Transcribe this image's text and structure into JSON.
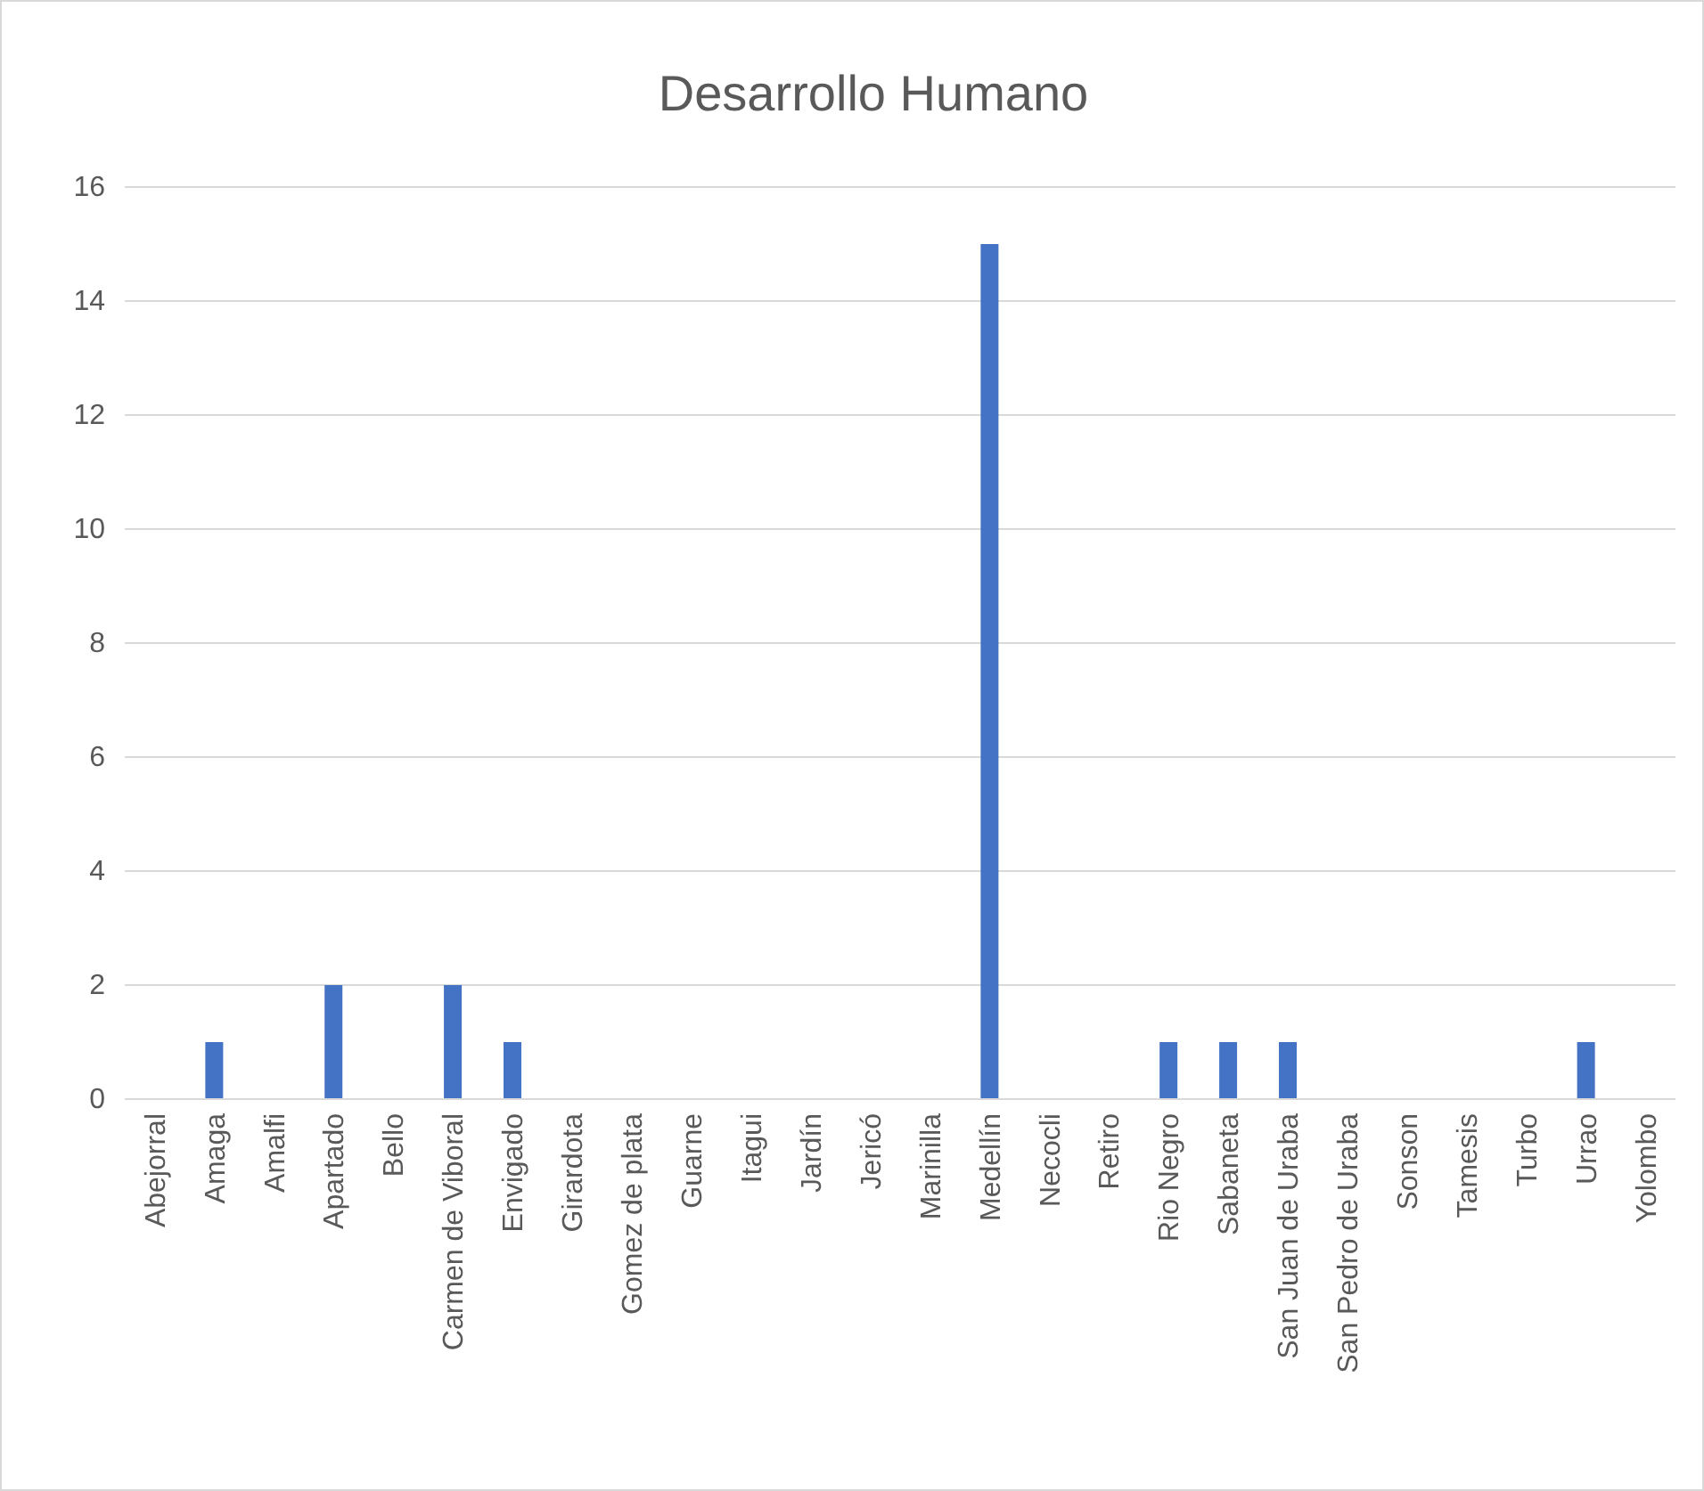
{
  "chart_data": {
    "type": "bar",
    "title": "Desarrollo Humano",
    "categories": [
      "Abejorral",
      "Amaga",
      "Amalfi",
      "Apartado",
      "Bello",
      "Carmen de Viboral",
      "Envigado",
      "Girardota",
      "Gomez de plata",
      "Guarne",
      "Itagui",
      "Jardín",
      "Jericó",
      "Marinilla",
      "Medellín",
      "Necocli",
      "Retiro",
      "Rio Negro",
      "Sabaneta",
      "San Juan de Uraba",
      "San Pedro de Uraba",
      "Sonson",
      "Tamesis",
      "Turbo",
      "Urrao",
      "Yolombo"
    ],
    "values": [
      0,
      1,
      0,
      2,
      0,
      2,
      1,
      0,
      0,
      0,
      0,
      0,
      0,
      0,
      15,
      0,
      0,
      1,
      1,
      1,
      0,
      0,
      0,
      0,
      1,
      0
    ],
    "color": "#4472c4",
    "ylim": [
      0,
      16
    ],
    "yticks": [
      0,
      2,
      4,
      6,
      8,
      10,
      12,
      14,
      16
    ],
    "grid": "y"
  }
}
